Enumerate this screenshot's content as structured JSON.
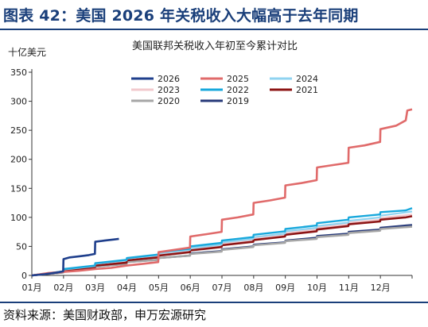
{
  "header": {
    "title": "图表 42：美国 2026 年关税收入大幅高于去年同期"
  },
  "footer": {
    "source": "资料来源：美国财政部，申万宏源研究"
  },
  "chart_data": {
    "type": "line",
    "title": "美国联邦关税收入年初至今累计对比",
    "ylabel": "十亿美元",
    "xlabel": "",
    "ylim": [
      0,
      350
    ],
    "yticks": [
      "0",
      "50",
      "100",
      "150",
      "200",
      "250",
      "300",
      "350"
    ],
    "categories": [
      "01月",
      "02月",
      "03月",
      "04月",
      "05月",
      "06月",
      "07月",
      "08月",
      "09月",
      "10月",
      "11月",
      "12月"
    ],
    "grid": false,
    "legend_position": "top-center",
    "series": [
      {
        "name": "2026",
        "color": "#1f3f8c",
        "width": 2.6,
        "points": [
          [
            0,
            0
          ],
          [
            0.4,
            2
          ],
          [
            0.8,
            5
          ],
          [
            0.99,
            7
          ],
          [
            1,
            28
          ],
          [
            1.2,
            31
          ],
          [
            1.5,
            33
          ],
          [
            1.8,
            35
          ],
          [
            1.99,
            37
          ],
          [
            2,
            58
          ],
          [
            2.3,
            60
          ],
          [
            2.6,
            62
          ],
          [
            2.75,
            63
          ]
        ]
      },
      {
        "name": "2025",
        "color": "#e06a6a",
        "width": 2.6,
        "points": [
          [
            0,
            0
          ],
          [
            0.5,
            4
          ],
          [
            1,
            6
          ],
          [
            1.5,
            8
          ],
          [
            2,
            11
          ],
          [
            2.5,
            13
          ],
          [
            3,
            17
          ],
          [
            3.5,
            20
          ],
          [
            3.99,
            23
          ],
          [
            4,
            40
          ],
          [
            4.5,
            44
          ],
          [
            4.99,
            48
          ],
          [
            5,
            67
          ],
          [
            5.5,
            71
          ],
          [
            5.99,
            75
          ],
          [
            6,
            96
          ],
          [
            6.5,
            100
          ],
          [
            6.99,
            105
          ],
          [
            7,
            125
          ],
          [
            7.5,
            129
          ],
          [
            7.99,
            134
          ],
          [
            8,
            155
          ],
          [
            8.5,
            159
          ],
          [
            8.99,
            164
          ],
          [
            9,
            186
          ],
          [
            9.5,
            190
          ],
          [
            9.99,
            194
          ],
          [
            10,
            220
          ],
          [
            10.5,
            224
          ],
          [
            10.99,
            230
          ],
          [
            11,
            252
          ],
          [
            11.5,
            258
          ],
          [
            11.8,
            267
          ],
          [
            11.85,
            284
          ],
          [
            12,
            286
          ]
        ]
      },
      {
        "name": "2024",
        "color": "#8fd3f0",
        "width": 2.2,
        "points": [
          [
            0,
            0
          ],
          [
            0.99,
            7
          ],
          [
            1,
            10
          ],
          [
            1.99,
            16
          ],
          [
            2,
            20
          ],
          [
            2.99,
            26
          ],
          [
            3,
            29
          ],
          [
            3.99,
            35
          ],
          [
            4,
            38
          ],
          [
            4.99,
            44
          ],
          [
            5,
            47
          ],
          [
            5.99,
            53
          ],
          [
            6,
            57
          ],
          [
            6.99,
            63
          ],
          [
            7,
            66
          ],
          [
            7.99,
            72
          ],
          [
            8,
            76
          ],
          [
            8.99,
            82
          ],
          [
            9,
            85
          ],
          [
            9.99,
            91
          ],
          [
            10,
            94
          ],
          [
            10.99,
            100
          ],
          [
            11,
            103
          ],
          [
            12,
            110
          ]
        ]
      },
      {
        "name": "2023",
        "color": "#f2c9cd",
        "width": 2.2,
        "points": [
          [
            0,
            0
          ],
          [
            0.99,
            6
          ],
          [
            1,
            9
          ],
          [
            1.99,
            15
          ],
          [
            2,
            18
          ],
          [
            2.99,
            24
          ],
          [
            3,
            27
          ],
          [
            3.99,
            33
          ],
          [
            4,
            36
          ],
          [
            4.99,
            42
          ],
          [
            5,
            45
          ],
          [
            5.99,
            51
          ],
          [
            6,
            55
          ],
          [
            6.99,
            61
          ],
          [
            7,
            64
          ],
          [
            7.99,
            70
          ],
          [
            8,
            73
          ],
          [
            8.99,
            79
          ],
          [
            9,
            82
          ],
          [
            9.99,
            88
          ],
          [
            10,
            91
          ],
          [
            10.99,
            96
          ],
          [
            11,
            99
          ],
          [
            12,
            105
          ]
        ]
      },
      {
        "name": "2022",
        "color": "#18a8dc",
        "width": 2.4,
        "points": [
          [
            0,
            0
          ],
          [
            0.99,
            7
          ],
          [
            1,
            11
          ],
          [
            1.99,
            17
          ],
          [
            2,
            21
          ],
          [
            2.99,
            27
          ],
          [
            3,
            30
          ],
          [
            3.99,
            36
          ],
          [
            4,
            40
          ],
          [
            4.99,
            46
          ],
          [
            5,
            50
          ],
          [
            5.99,
            56
          ],
          [
            6,
            60
          ],
          [
            6.99,
            66
          ],
          [
            7,
            70
          ],
          [
            7.99,
            76
          ],
          [
            8,
            80
          ],
          [
            8.99,
            86
          ],
          [
            9,
            90
          ],
          [
            9.99,
            96
          ],
          [
            10,
            100
          ],
          [
            10.99,
            105
          ],
          [
            11,
            109
          ],
          [
            11.8,
            112
          ],
          [
            12,
            116
          ]
        ]
      },
      {
        "name": "2021",
        "color": "#8c1414",
        "width": 2.6,
        "points": [
          [
            0,
            0
          ],
          [
            0.99,
            6
          ],
          [
            1,
            9
          ],
          [
            1.99,
            14
          ],
          [
            2,
            17
          ],
          [
            2.99,
            22
          ],
          [
            3,
            26
          ],
          [
            3.99,
            31
          ],
          [
            4,
            34
          ],
          [
            4.99,
            40
          ],
          [
            5,
            43
          ],
          [
            5.99,
            49
          ],
          [
            6,
            52
          ],
          [
            6.99,
            58
          ],
          [
            7,
            61
          ],
          [
            7.99,
            67
          ],
          [
            8,
            70
          ],
          [
            8.99,
            76
          ],
          [
            9,
            79
          ],
          [
            9.99,
            85
          ],
          [
            10,
            88
          ],
          [
            10.99,
            93
          ],
          [
            11,
            96
          ],
          [
            11.8,
            100
          ],
          [
            12,
            102
          ]
        ]
      },
      {
        "name": "2020",
        "color": "#a6a6a6",
        "width": 2.6,
        "points": [
          [
            0,
            0
          ],
          [
            0.99,
            5
          ],
          [
            1,
            8
          ],
          [
            1.99,
            12
          ],
          [
            2,
            15
          ],
          [
            2.99,
            20
          ],
          [
            3,
            23
          ],
          [
            3.99,
            27
          ],
          [
            4,
            30
          ],
          [
            4.99,
            34
          ],
          [
            5,
            37
          ],
          [
            5.99,
            41
          ],
          [
            6,
            44
          ],
          [
            6.99,
            49
          ],
          [
            7,
            52
          ],
          [
            7.99,
            56
          ],
          [
            8,
            59
          ],
          [
            8.99,
            63
          ],
          [
            9,
            66
          ],
          [
            9.99,
            70
          ],
          [
            10,
            73
          ],
          [
            10.99,
            77
          ],
          [
            11,
            80
          ],
          [
            12,
            84
          ]
        ]
      },
      {
        "name": "2019",
        "color": "#273a7a",
        "width": 2.4,
        "points": [
          [
            0,
            0
          ],
          [
            0.99,
            5
          ],
          [
            1,
            8
          ],
          [
            1.99,
            12
          ],
          [
            2,
            15
          ],
          [
            2.99,
            20
          ],
          [
            3,
            23
          ],
          [
            3.99,
            27
          ],
          [
            4,
            30
          ],
          [
            4.99,
            34
          ],
          [
            5,
            38
          ],
          [
            5.99,
            42
          ],
          [
            6,
            45
          ],
          [
            6.99,
            50
          ],
          [
            7,
            53
          ],
          [
            7.99,
            57
          ],
          [
            8,
            60
          ],
          [
            8.99,
            65
          ],
          [
            9,
            68
          ],
          [
            9.99,
            72
          ],
          [
            10,
            75
          ],
          [
            10.99,
            79
          ],
          [
            11,
            82
          ],
          [
            11.8,
            86
          ],
          [
            12,
            87
          ]
        ]
      }
    ]
  }
}
